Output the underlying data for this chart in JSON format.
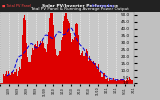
{
  "title": "Solar PV/Inverter Performance Total PV Panel & Running Average Power Output",
  "bg_color": "#c0c0c0",
  "plot_bg_color": "#c8c8c8",
  "bar_color": "#dd0000",
  "avg_line_color": "#0000dd",
  "grid_color": "#ffffff",
  "ylim": [
    0,
    52
  ],
  "ytick_vals": [
    1.0,
    5.0,
    10.0,
    15.0,
    20.0,
    25.0,
    30.0,
    35.0,
    40.0,
    45.0,
    50.0
  ],
  "ytick_labels": [
    "1.0",
    "5.0",
    "10.0",
    "15.0",
    "20.0",
    "25.0",
    "30.0",
    "35.0",
    "40.0",
    "45.0",
    "50.0"
  ],
  "title_fontsize": 3.8,
  "tick_fontsize": 3.0,
  "legend_pv_label": "Total PV Panel Power",
  "legend_avg_label": "Running Avg Power",
  "header_color": "#222222"
}
